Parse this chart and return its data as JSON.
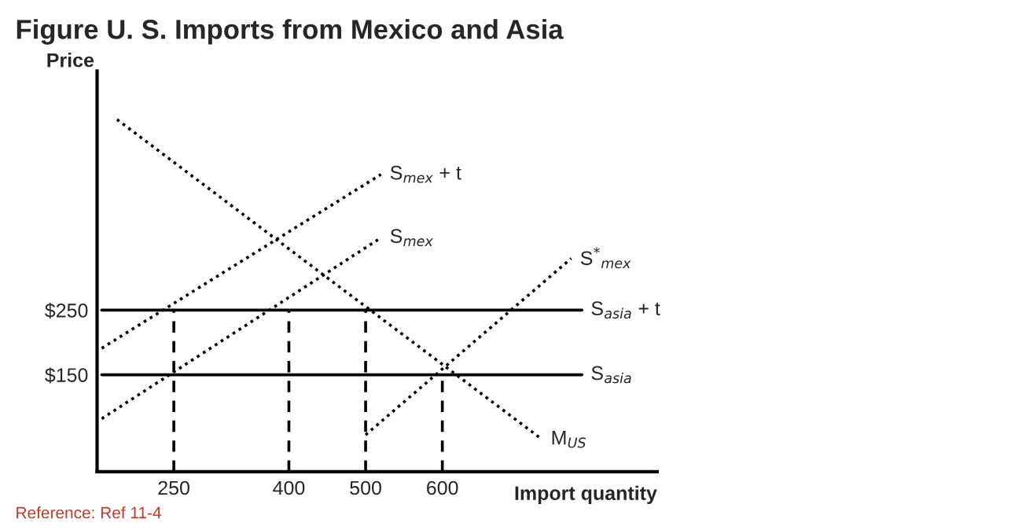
{
  "chart_data": {
    "type": "line",
    "title": "Figure U. S. Imports from Mexico and Asia",
    "xlabel": "Import quantity",
    "ylabel": "Price",
    "xlim": [
      150,
      880
    ],
    "ylim": [
      0,
      620
    ],
    "xticks": [
      250,
      400,
      500,
      600
    ],
    "yticks": [
      {
        "value": 150,
        "label": "$150"
      },
      {
        "value": 250,
        "label": "$250"
      }
    ],
    "grid": false,
    "legend": false,
    "marker": "none",
    "series": [
      {
        "name": "S$_{mex}$ + t",
        "color": "#000000",
        "line_style": "dotted",
        "x": [
          156,
          520
        ],
        "values": [
          191,
          460
        ]
      },
      {
        "name": "S$_{mex}$",
        "color": "#000000",
        "line_style": "dotted",
        "x": [
          156,
          520
        ],
        "values": [
          82,
          362
        ]
      },
      {
        "name": "S$^{*}$$_{mex}$",
        "color": "#000000",
        "line_style": "dotted",
        "x": [
          500,
          768
        ],
        "values": [
          57,
          330
        ]
      },
      {
        "name": "M$_{US}$",
        "color": "#000000",
        "line_style": "dotted",
        "x": [
          176,
          730
        ],
        "values": [
          545,
          50
        ]
      },
      {
        "name": "S$_{asia}$ + t",
        "color": "#000000",
        "line_style": "solid",
        "x": [
          156,
          782
        ],
        "values": [
          250,
          250
        ]
      },
      {
        "name": "S$_{asia}$",
        "color": "#000000",
        "line_style": "solid",
        "x": [
          156,
          782
        ],
        "values": [
          150,
          150
        ]
      },
      {
        "color": "#000000",
        "line_style": "dashed",
        "x": [
          250,
          250
        ],
        "values": [
          0,
          250
        ]
      },
      {
        "color": "#000000",
        "line_style": "dashed",
        "x": [
          400,
          400
        ],
        "values": [
          0,
          250
        ]
      },
      {
        "color": "#000000",
        "line_style": "dashed",
        "x": [
          500,
          500
        ],
        "values": [
          0,
          250
        ]
      },
      {
        "color": "#000000",
        "line_style": "dashed",
        "x": [
          600,
          600
        ],
        "values": [
          0,
          150
        ]
      }
    ],
    "annotations": [
      "Reference: Ref 11-4"
    ]
  }
}
